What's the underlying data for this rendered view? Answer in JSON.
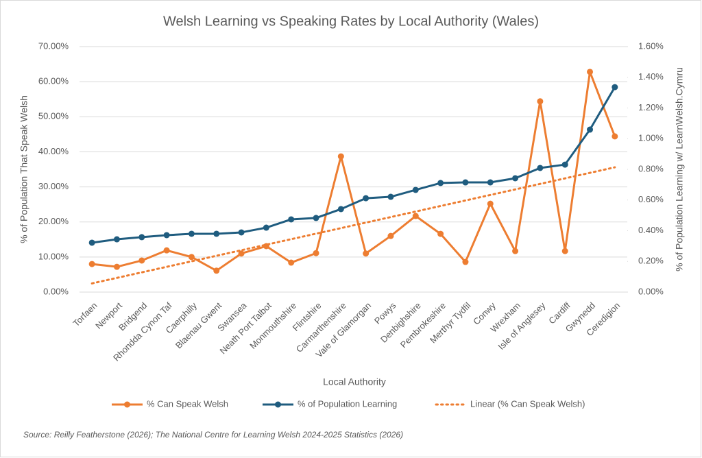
{
  "chart_data": {
    "type": "line",
    "title": "Welsh Learning vs Speaking Rates by Local Authority (Wales)",
    "x_label": "Local Authority",
    "y_label": "% of Population That Speak Welsh",
    "y2_label": "% of Population Learning w/ LearnWelsh.Cymru",
    "source": "Source: Reilly Featherstone (2026); The National Centre for Learning Welsh 2024-2025 Statistics (2026)",
    "categories": [
      "Torfaen",
      "Newport",
      "Bridgend",
      "Rhondda Cynon Taf",
      "Caerphilly",
      "Blaenau Gwent",
      "Swansea",
      "Neath Port Talbot",
      "Monmouthshire",
      "Flintshire",
      "Carmarthenshire",
      "Vale of Glamorgan",
      "Powys",
      "Denbighshire",
      "Pembrokeshire",
      "Merthyr Tydfil",
      "Conwy",
      "Wrexham",
      "Isle of Anglesey",
      "Cardiff",
      "Gwynedd",
      "Ceredigion"
    ],
    "series": [
      {
        "name": "% Can Speak Welsh",
        "color": "#ed7d31",
        "axis": "y",
        "values": [
          8.0,
          7.2,
          9.0,
          11.9,
          10.0,
          6.1,
          11.0,
          13.1,
          8.4,
          11.1,
          38.7,
          11.0,
          16.0,
          21.7,
          16.6,
          8.6,
          25.2,
          11.7,
          54.4,
          11.7,
          62.8,
          44.4
        ]
      },
      {
        "name": "% of Population Learning",
        "color": "#1f5c7f",
        "axis": "y2",
        "values": [
          0.322,
          0.344,
          0.358,
          0.371,
          0.38,
          0.38,
          0.389,
          0.42,
          0.474,
          0.483,
          0.541,
          0.612,
          0.621,
          0.666,
          0.711,
          0.715,
          0.715,
          0.742,
          0.809,
          0.831,
          1.059,
          1.336
        ]
      }
    ],
    "trendline": {
      "name": "Linear (% Can Speak Welsh)",
      "color": "#ed7d31",
      "style": "dotted"
    },
    "ylim": [
      0,
      70
    ],
    "yticks": [
      {
        "value": 0,
        "label": "0.00%"
      },
      {
        "value": 10,
        "label": "10.00%"
      },
      {
        "value": 20,
        "label": "20.00%"
      },
      {
        "value": 30,
        "label": "30.00%"
      },
      {
        "value": 40,
        "label": "40.00%"
      },
      {
        "value": 50,
        "label": "50.00%"
      },
      {
        "value": 60,
        "label": "60.00%"
      },
      {
        "value": 70,
        "label": "70.00%"
      }
    ],
    "y2lim": [
      0,
      1.6
    ],
    "y2ticks": [
      {
        "value": 0,
        "label": "0.00%"
      },
      {
        "value": 0.2,
        "label": "0.20%"
      },
      {
        "value": 0.4,
        "label": "0.40%"
      },
      {
        "value": 0.6,
        "label": "0.60%"
      },
      {
        "value": 0.8,
        "label": "0.80%"
      },
      {
        "value": 1.0,
        "label": "1.00%"
      },
      {
        "value": 1.2,
        "label": "1.20%"
      },
      {
        "value": 1.4,
        "label": "1.40%"
      },
      {
        "value": 1.6,
        "label": "1.60%"
      }
    ],
    "grid": true
  }
}
